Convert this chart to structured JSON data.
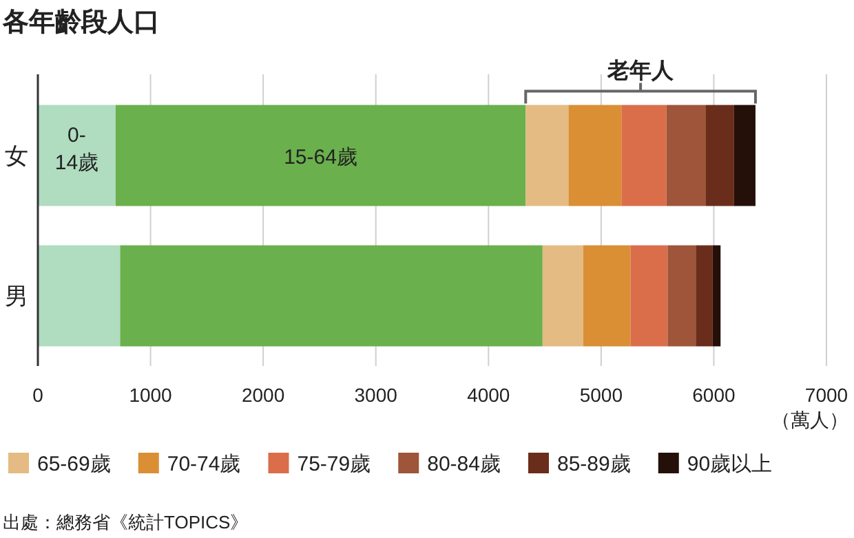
{
  "chart_data": {
    "type": "bar",
    "orientation": "horizontal",
    "stacked": true,
    "title": "各年齡段人口",
    "xlabel": "（萬人）",
    "categories": [
      "女",
      "男"
    ],
    "series": [
      {
        "name": "0-14歲",
        "color": "#b0dcc0",
        "values": [
          690,
          730
        ]
      },
      {
        "name": "15-64歲",
        "color": "#6ab04c",
        "values": [
          3640,
          3750
        ]
      },
      {
        "name": "65-69歲",
        "color": "#e4bb82",
        "values": [
          380,
          360
        ]
      },
      {
        "name": "70-74歲",
        "color": "#da8f35",
        "values": [
          470,
          420
        ]
      },
      {
        "name": "75-79歲",
        "color": "#da6e4b",
        "values": [
          400,
          330
        ]
      },
      {
        "name": "80-84歲",
        "color": "#9e5539",
        "values": [
          350,
          250
        ]
      },
      {
        "name": "85-89歲",
        "color": "#6b2d1b",
        "values": [
          250,
          150
        ]
      },
      {
        "name": "90歲以上",
        "color": "#241008",
        "values": [
          190,
          70
        ]
      }
    ],
    "xlim": [
      0,
      7000
    ],
    "xticks": [
      0,
      1000,
      2000,
      3000,
      4000,
      5000,
      6000,
      7000
    ],
    "grid": "x",
    "legend": "bottom",
    "annotations": [
      "老年人",
      "出處：總務省《統計TOPICS》"
    ]
  }
}
